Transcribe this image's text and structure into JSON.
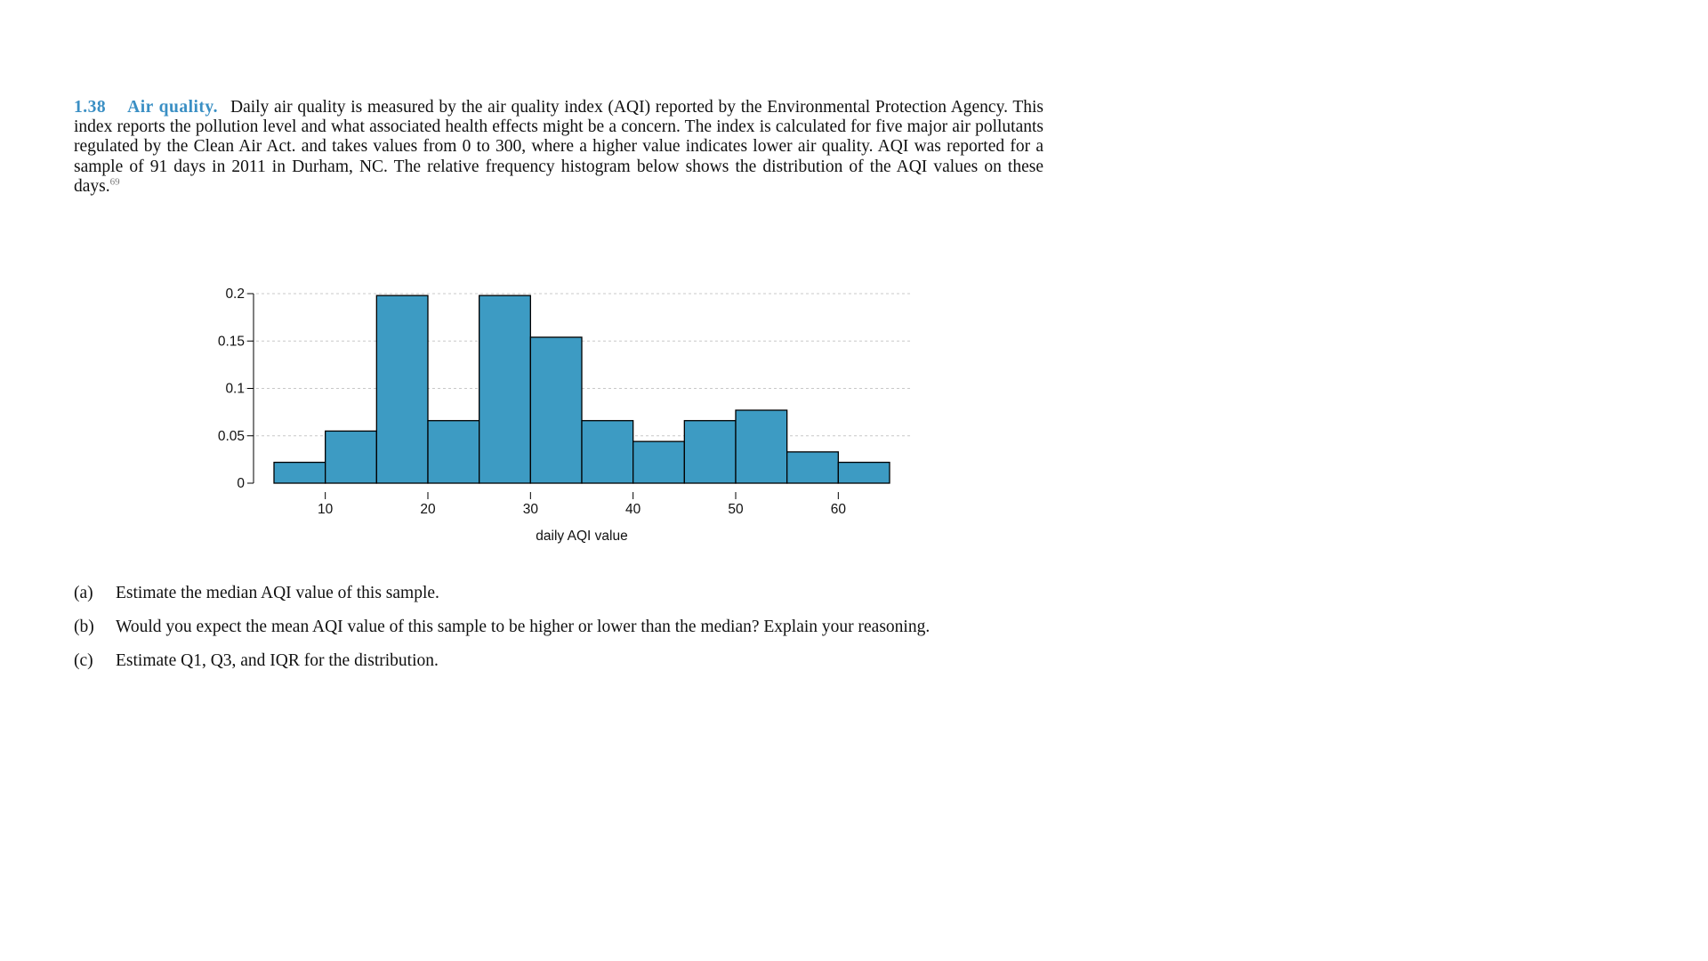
{
  "problem": {
    "number": "1.38",
    "title": "Air quality.",
    "text": "Daily air quality is measured by the air quality index (AQI) reported by the Environmental Protection Agency. This index reports the pollution level and what associated health effects might be a concern. The index is calculated for five major air pollutants regulated by the Clean Air Act. and takes values from 0 to 300, where a higher value indicates lower air quality. AQI was reported for a sample of 91 days in 2011 in Durham, NC. The relative frequency histogram below shows the distribution of the AQI values on these days.",
    "footnote": "69"
  },
  "chart_data": {
    "type": "bar",
    "xlabel": "daily AQI value",
    "ylabel": "",
    "bin_width": 5,
    "bins": [
      {
        "from": 5,
        "to": 10,
        "value": 0.022
      },
      {
        "from": 10,
        "to": 15,
        "value": 0.055
      },
      {
        "from": 15,
        "to": 20,
        "value": 0.198
      },
      {
        "from": 20,
        "to": 25,
        "value": 0.066
      },
      {
        "from": 25,
        "to": 30,
        "value": 0.198
      },
      {
        "from": 30,
        "to": 35,
        "value": 0.154
      },
      {
        "from": 35,
        "to": 40,
        "value": 0.066
      },
      {
        "from": 40,
        "to": 45,
        "value": 0.044
      },
      {
        "from": 45,
        "to": 50,
        "value": 0.066
      },
      {
        "from": 50,
        "to": 55,
        "value": 0.077
      },
      {
        "from": 55,
        "to": 60,
        "value": 0.033
      },
      {
        "from": 60,
        "to": 65,
        "value": 0.022
      }
    ],
    "xlim": [
      5,
      65
    ],
    "ylim": [
      0,
      0.2
    ],
    "x_ticks": [
      10,
      20,
      30,
      40,
      50,
      60
    ],
    "y_ticks": [
      {
        "value": 0,
        "label": "0"
      },
      {
        "value": 0.05,
        "label": "0.05"
      },
      {
        "value": 0.1,
        "label": "0.1"
      },
      {
        "value": 0.15,
        "label": "0.15"
      },
      {
        "value": 0.2,
        "label": "0.2"
      }
    ],
    "grid": "horizontal dashed",
    "bar_color": "#3d9bc3"
  },
  "questions": [
    {
      "label": "(a)",
      "text": "Estimate the median AQI value of this sample."
    },
    {
      "label": "(b)",
      "text": "Would you expect the mean AQI value of this sample to be higher or lower than the median? Explain your reasoning."
    },
    {
      "label": "(c)",
      "text": "Estimate Q1, Q3, and IQR for the distribution."
    }
  ]
}
